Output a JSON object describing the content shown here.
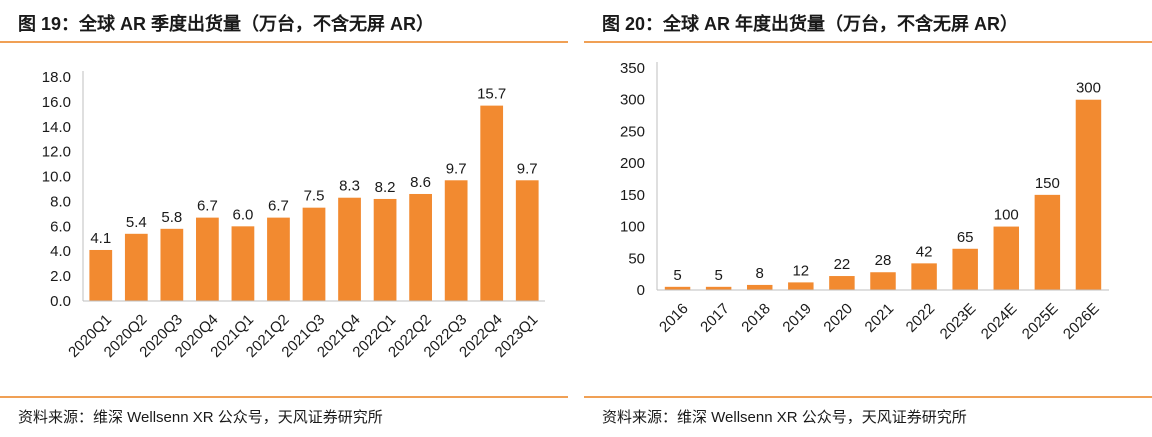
{
  "colors": {
    "bar": "#f28a30",
    "axis": "#bfbfbf",
    "text": "#1a1a1a",
    "accent_rule": "#f0a055"
  },
  "chart_data": [
    {
      "type": "bar",
      "title": "图 19：全球 AR 季度出货量（万台，不含无屏 AR）",
      "source": "资料来源：维深  Wellsenn XR 公众号，天风证券研究所",
      "categories": [
        "2020Q1",
        "2020Q2",
        "2020Q3",
        "2020Q4",
        "2021Q1",
        "2021Q2",
        "2021Q3",
        "2021Q4",
        "2022Q1",
        "2022Q2",
        "2022Q3",
        "2022Q4",
        "2023Q1"
      ],
      "values": [
        4.1,
        5.4,
        5.8,
        6.7,
        6.0,
        6.7,
        7.5,
        8.3,
        8.2,
        8.6,
        9.7,
        15.7,
        9.7
      ],
      "value_labels": [
        "4.1",
        "5.4",
        "5.8",
        "6.7",
        "6.0",
        "6.7",
        "7.5",
        "8.3",
        "8.2",
        "8.6",
        "9.7",
        "15.7",
        "9.7"
      ],
      "yticks": [
        "0.0",
        "2.0",
        "4.0",
        "6.0",
        "8.0",
        "10.0",
        "12.0",
        "14.0",
        "16.0",
        "18.0"
      ],
      "ylim": [
        0,
        18
      ],
      "xlabel": "",
      "ylabel": "",
      "grid": false,
      "legend": "none"
    },
    {
      "type": "bar",
      "title": "图 20：全球 AR 年度出货量（万台，不含无屏 AR）",
      "source": "资料来源：维深  Wellsenn XR 公众号，天风证券研究所",
      "categories": [
        "2016",
        "2017",
        "2018",
        "2019",
        "2020",
        "2021",
        "2022",
        "2023E",
        "2024E",
        "2025E",
        "2026E"
      ],
      "values": [
        5,
        5,
        8,
        12,
        22,
        28,
        42,
        65,
        100,
        150,
        300
      ],
      "value_labels": [
        "5",
        "5",
        "8",
        "12",
        "22",
        "28",
        "42",
        "65",
        "100",
        "150",
        "300"
      ],
      "yticks": [
        "0",
        "50",
        "100",
        "150",
        "200",
        "250",
        "300",
        "350"
      ],
      "ylim": [
        0,
        350
      ],
      "xlabel": "",
      "ylabel": "",
      "grid": false,
      "legend": "none"
    }
  ]
}
